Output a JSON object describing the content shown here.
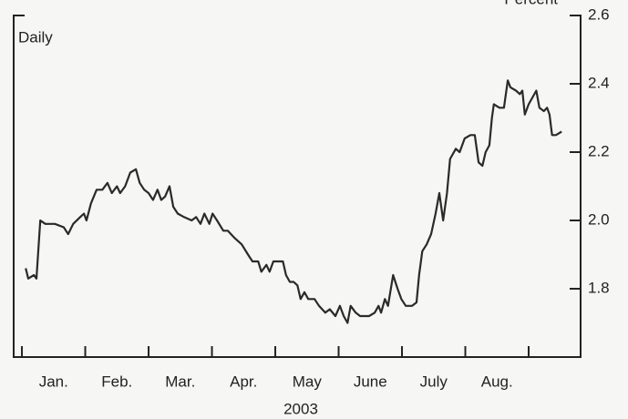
{
  "chart_data": {
    "type": "line",
    "unit_label": "Percent",
    "annotation": "Daily",
    "x_label": "2003",
    "categories": [
      "Jan.",
      "Feb.",
      "Mar.",
      "Apr.",
      "May",
      "June",
      "July",
      "Aug."
    ],
    "xlim": [
      -0.13,
      8.82
    ],
    "ylim": [
      1.6,
      2.6
    ],
    "yticks": [
      1.8,
      {
        "value": 2,
        "label": "2.0"
      },
      2.2,
      2.4,
      2.6
    ],
    "series": [
      {
        "color": "#2a2a2a",
        "x": [
          0.06,
          0.1,
          0.19,
          0.23,
          0.29,
          0.37,
          0.52,
          0.66,
          0.73,
          0.81,
          0.92,
          0.98,
          1.02,
          1.09,
          1.18,
          1.27,
          1.35,
          1.42,
          1.5,
          1.55,
          1.63,
          1.71,
          1.8,
          1.86,
          1.93,
          2.0,
          2.07,
          2.14,
          2.2,
          2.26,
          2.33,
          2.39,
          2.46,
          2.56,
          2.68,
          2.75,
          2.82,
          2.88,
          2.96,
          3.01,
          3.08,
          3.18,
          3.25,
          3.35,
          3.47,
          3.57,
          3.64,
          3.73,
          3.78,
          3.86,
          3.91,
          3.97,
          4.04,
          4.12,
          4.17,
          4.23,
          4.29,
          4.35,
          4.4,
          4.46,
          4.52,
          4.62,
          4.69,
          4.79,
          4.86,
          4.95,
          5.02,
          5.08,
          5.14,
          5.19,
          5.27,
          5.34,
          5.38,
          5.48,
          5.57,
          5.63,
          5.67,
          5.73,
          5.78,
          5.86,
          5.93,
          5.99,
          6.06,
          6.16,
          6.23,
          6.27,
          6.32,
          6.39,
          6.46,
          6.53,
          6.59,
          6.65,
          6.71,
          6.76,
          6.85,
          6.91,
          6.99,
          7.08,
          7.15,
          7.21,
          7.27,
          7.32,
          7.38,
          7.42,
          7.45,
          7.54,
          7.61,
          7.67,
          7.71,
          7.8,
          7.86,
          7.9,
          7.94,
          8.0,
          8.06,
          8.12,
          8.17,
          8.24,
          8.29,
          8.33,
          8.37,
          8.43,
          8.52
        ],
        "values": [
          1.86,
          1.83,
          1.84,
          1.83,
          2.0,
          1.99,
          1.99,
          1.98,
          1.96,
          1.99,
          2.01,
          2.02,
          2.0,
          2.05,
          2.09,
          2.09,
          2.11,
          2.08,
          2.1,
          2.08,
          2.1,
          2.14,
          2.15,
          2.11,
          2.09,
          2.08,
          2.06,
          2.09,
          2.06,
          2.07,
          2.1,
          2.04,
          2.02,
          2.01,
          2.0,
          2.01,
          1.99,
          2.02,
          1.99,
          2.02,
          2.0,
          1.97,
          1.97,
          1.95,
          1.93,
          1.9,
          1.88,
          1.88,
          1.85,
          1.87,
          1.85,
          1.88,
          1.88,
          1.88,
          1.84,
          1.82,
          1.82,
          1.81,
          1.77,
          1.79,
          1.77,
          1.77,
          1.75,
          1.73,
          1.74,
          1.72,
          1.75,
          1.72,
          1.7,
          1.75,
          1.73,
          1.72,
          1.72,
          1.72,
          1.73,
          1.75,
          1.73,
          1.77,
          1.75,
          1.84,
          1.8,
          1.77,
          1.75,
          1.75,
          1.76,
          1.84,
          1.91,
          1.93,
          1.96,
          2.02,
          2.08,
          2.0,
          2.08,
          2.18,
          2.21,
          2.2,
          2.24,
          2.25,
          2.25,
          2.17,
          2.16,
          2.2,
          2.22,
          2.3,
          2.34,
          2.33,
          2.33,
          2.41,
          2.39,
          2.38,
          2.37,
          2.38,
          2.31,
          2.34,
          2.36,
          2.38,
          2.33,
          2.32,
          2.33,
          2.31,
          2.25,
          2.25,
          2.26
        ]
      }
    ]
  }
}
